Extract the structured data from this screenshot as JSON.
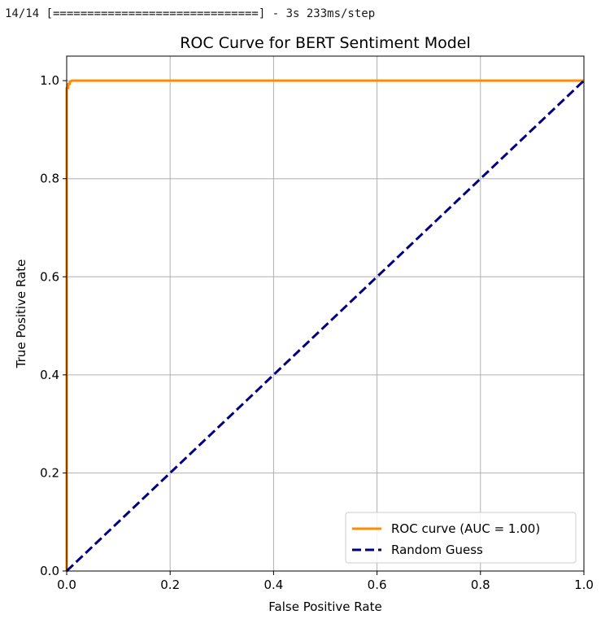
{
  "console": {
    "progress_text": "14/14 [==============================] - 3s 233ms/step"
  },
  "chart_data": {
    "type": "line",
    "title": "ROC Curve for BERT Sentiment Model",
    "xlabel": "False Positive Rate",
    "ylabel": "True Positive Rate",
    "xlim": [
      0.0,
      1.0
    ],
    "ylim": [
      0.0,
      1.05
    ],
    "xticks": [
      "0.0",
      "0.2",
      "0.4",
      "0.6",
      "0.8",
      "1.0"
    ],
    "yticks": [
      "0.0",
      "0.2",
      "0.4",
      "0.6",
      "0.8",
      "1.0"
    ],
    "grid": true,
    "legend_position": "lower-right",
    "series": [
      {
        "name": "ROC curve (AUC = 1.00)",
        "color": "#ff8c00",
        "style": "solid",
        "x": [
          0.0,
          0.0,
          0.003,
          0.003,
          0.006,
          0.006,
          0.01,
          0.02,
          1.0
        ],
        "y": [
          0.0,
          0.985,
          0.985,
          0.993,
          0.993,
          0.997,
          1.0,
          1.0,
          1.0
        ]
      },
      {
        "name": "Random Guess",
        "color": "#000080",
        "style": "dashed",
        "x": [
          0.0,
          1.0
        ],
        "y": [
          0.0,
          1.0
        ]
      }
    ]
  }
}
